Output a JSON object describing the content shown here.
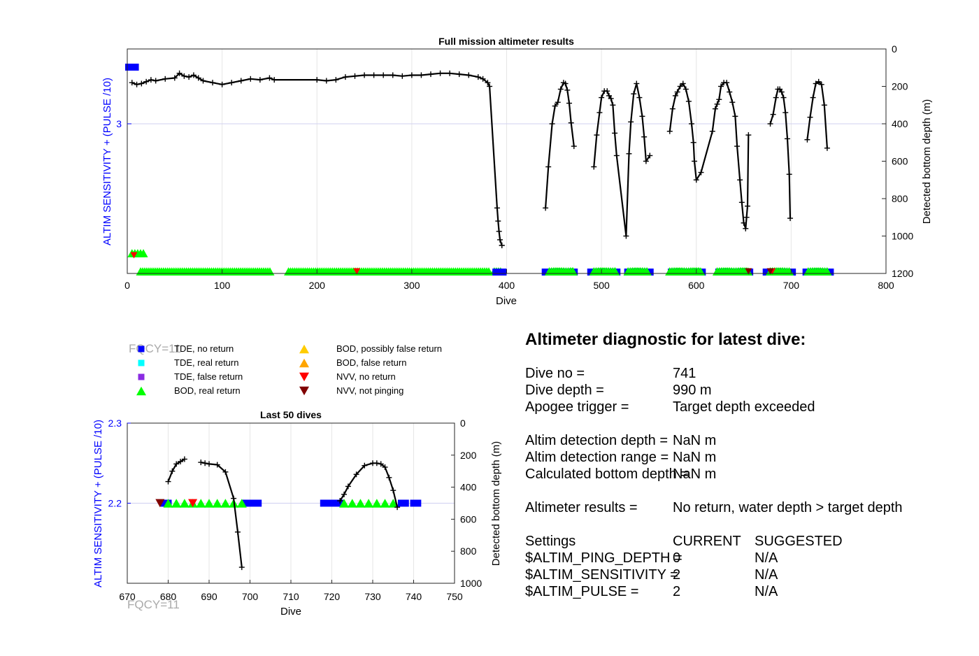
{
  "chart_data": [
    {
      "type": "line",
      "title": "Full mission altimeter results",
      "xlabel": "Dive",
      "ylabel_left": "ALTIM SENSITIVITY + (PULSE /10)",
      "ylabel_right": "Detected bottom depth (m)",
      "xlim": [
        0,
        800
      ],
      "xticks": [
        0,
        100,
        200,
        300,
        400,
        500,
        600,
        700,
        800
      ],
      "ylim_right": [
        0,
        1200
      ],
      "yticks_right": [
        0,
        200,
        400,
        600,
        800,
        1000,
        1200
      ],
      "yticks_left": [
        3
      ],
      "grid": true,
      "series": [
        {
          "name": "Detected bottom depth",
          "x": [
            5,
            10,
            15,
            20,
            25,
            30,
            40,
            50,
            55,
            60,
            65,
            70,
            75,
            80,
            90,
            100,
            110,
            120,
            130,
            140,
            150,
            155,
            200,
            210,
            220,
            230,
            240,
            250,
            260,
            270,
            280,
            290,
            300,
            310,
            320,
            330,
            340,
            350,
            360,
            370,
            375,
            380,
            382,
            390,
            391,
            392,
            393,
            395,
            395,
            441,
            444,
            448,
            451,
            454,
            457,
            460,
            462,
            464,
            466,
            468,
            471,
            492,
            495,
            498,
            500,
            503,
            506,
            508,
            510,
            512,
            514,
            516,
            526,
            529,
            531,
            534,
            537,
            540,
            543,
            545,
            547,
            551,
            572,
            575,
            578,
            580,
            583,
            586,
            589,
            592,
            595,
            597,
            598,
            600,
            605,
            617,
            620,
            622,
            624,
            626,
            629,
            632,
            635,
            638,
            641,
            643,
            646,
            648,
            650,
            652,
            653,
            654,
            655,
            678,
            681,
            684,
            686,
            688,
            690,
            692,
            694,
            696,
            698,
            699,
            717,
            720,
            723,
            726,
            729,
            732,
            735,
            738
          ],
          "y": [
            180,
            190,
            185,
            175,
            165,
            170,
            160,
            155,
            130,
            145,
            150,
            140,
            155,
            170,
            180,
            190,
            180,
            170,
            160,
            165,
            155,
            165,
            165,
            170,
            165,
            150,
            145,
            140,
            140,
            140,
            140,
            145,
            140,
            140,
            135,
            130,
            130,
            135,
            140,
            150,
            160,
            180,
            200,
            850,
            920,
            975,
            1020,
            1050,
            1050,
            850,
            630,
            400,
            305,
            285,
            215,
            180,
            185,
            220,
            290,
            395,
            520,
            630,
            460,
            340,
            260,
            225,
            225,
            250,
            265,
            300,
            450,
            570,
            1000,
            560,
            390,
            240,
            185,
            260,
            360,
            470,
            600,
            570,
            440,
            320,
            250,
            230,
            200,
            185,
            215,
            280,
            400,
            500,
            600,
            700,
            660,
            440,
            320,
            295,
            270,
            200,
            180,
            180,
            230,
            285,
            360,
            520,
            700,
            820,
            930,
            960,
            900,
            840,
            460,
            400,
            350,
            260,
            215,
            215,
            230,
            260,
            340,
            480,
            670,
            905,
            485,
            365,
            260,
            185,
            175,
            190,
            300,
            530
          ],
          "marker": "+",
          "color": "#000000"
        },
        {
          "name": "BOD, real return",
          "x_ranges": [
            [
              5,
              18
            ],
            [
              14,
              152
            ],
            [
              170,
              383
            ],
            [
              387,
              395
            ],
            [
              445,
              470
            ],
            [
              492,
              515
            ],
            [
              528,
              550
            ],
            [
              572,
              605
            ],
            [
              622,
              655
            ],
            [
              678,
              700
            ],
            [
              718,
              740
            ]
          ],
          "color": "#00ff00",
          "marker": "triangle-up"
        },
        {
          "name": "TDE, no return",
          "x_ranges": [
            [
              0,
              10
            ],
            [
              385,
              400
            ],
            [
              437,
              475
            ],
            [
              485,
              520
            ],
            [
              524,
              555
            ],
            [
              570,
              610
            ],
            [
              620,
              660
            ],
            [
              670,
              705
            ],
            [
              712,
              745
            ]
          ],
          "color": "#0000ff",
          "marker": "square"
        },
        {
          "name": "NVV, no return",
          "x": [
            7,
            242,
            680
          ],
          "color": "#ff0000",
          "marker": "triangle-down"
        },
        {
          "name": "NVV, not pinging",
          "x": [
            655,
            678
          ],
          "color": "#800000",
          "marker": "triangle-down"
        }
      ]
    },
    {
      "type": "line",
      "title": "Last 50 dives",
      "xlabel": "Dive",
      "ylabel_left": "ALTIM SENSITIVITY + (PULSE /10)",
      "ylabel_right": "Detected bottom depth (m)",
      "xlim": [
        670,
        750
      ],
      "xticks": [
        670,
        680,
        690,
        700,
        710,
        720,
        730,
        740,
        750
      ],
      "ylim_left": [
        2.1,
        2.3
      ],
      "yticks_left": [
        2.2,
        2.3
      ],
      "ylim_right": [
        0,
        1000
      ],
      "yticks_right": [
        0,
        200,
        400,
        600,
        800,
        1000
      ],
      "grid": true,
      "series": [
        {
          "name": "Detected bottom depth",
          "x": [
            680,
            681,
            682,
            683,
            684,
            688,
            689,
            690,
            692,
            694,
            696,
            697,
            698
          ],
          "y": [
            365,
            300,
            255,
            240,
            225,
            245,
            250,
            255,
            260,
            305,
            470,
            680,
            900
          ],
          "x2": [
            722,
            723,
            724,
            726,
            728,
            730,
            731,
            732,
            733,
            734,
            735,
            736
          ],
          "y2": [
            485,
            445,
            395,
            320,
            265,
            250,
            250,
            255,
            275,
            340,
            420,
            525
          ],
          "marker": "+",
          "color": "#000000"
        },
        {
          "name": "TDE, no return",
          "x": [
            679,
            680,
            699,
            700,
            701,
            702,
            718,
            719,
            720,
            721,
            722,
            737,
            738,
            740,
            741
          ],
          "value": 2.2,
          "color": "#0000ff",
          "marker": "square"
        },
        {
          "name": "BOD, real return",
          "x": [
            680,
            682,
            684,
            686,
            688,
            690,
            692,
            694,
            696,
            698,
            723,
            725,
            727,
            729,
            731,
            733,
            735
          ],
          "value": 2.2,
          "color": "#00ff00",
          "marker": "triangle-up"
        },
        {
          "name": "NVV, no return",
          "x": [
            686
          ],
          "value": 2.2,
          "color": "#ff0000",
          "marker": "triangle-down"
        },
        {
          "name": "NVV, not pinging",
          "x": [
            678
          ],
          "value": 2.2,
          "color": "#800000",
          "marker": "triangle-down"
        }
      ]
    }
  ],
  "legend": {
    "items": [
      {
        "label": "TDE, no return",
        "color": "#0000ff",
        "marker": "square"
      },
      {
        "label": "TDE, real return",
        "color": "#00ffff",
        "marker": "square"
      },
      {
        "label": "TDE, false return",
        "color": "#8a2be2",
        "marker": "square"
      },
      {
        "label": "BOD, real return",
        "color": "#00ff00",
        "marker": "triangle-up"
      },
      {
        "label": "BOD, possibly false return",
        "color": "#ffcc00",
        "marker": "triangle-up"
      },
      {
        "label": "BOD, false return",
        "color": "#ffa500",
        "marker": "triangle-up"
      },
      {
        "label": "NVV, no return",
        "color": "#ff0000",
        "marker": "triangle-down"
      },
      {
        "label": "NVV, not pinging",
        "color": "#800000",
        "marker": "triangle-down"
      }
    ]
  },
  "fqcy_label": "FQCY=11",
  "diagnostic": {
    "title": "Altimeter diagnostic for latest dive:",
    "rows": [
      {
        "label": "Dive no =",
        "value": "741"
      },
      {
        "label": "Dive depth =",
        "value": "990 m"
      },
      {
        "label": "Apogee trigger =",
        "value": "Target depth exceeded"
      },
      {
        "label": "Altim detection depth =",
        "value": "NaN m"
      },
      {
        "label": "Altim detection range =",
        "value": "NaN m"
      },
      {
        "label": "Calculated bottom depth =",
        "value": "NaN m"
      },
      {
        "label": "Altimeter results =",
        "value": "No return, water depth > target depth"
      }
    ],
    "settings_header": {
      "label": "Settings",
      "current": "CURRENT",
      "suggested": "SUGGESTED"
    },
    "settings": [
      {
        "label": "$ALTIM_PING_DEPTH =",
        "current": "0",
        "suggested": "N/A"
      },
      {
        "label": "$ALTIM_SENSITIVITY =",
        "current": "2",
        "suggested": "N/A"
      },
      {
        "label": "$ALTIM_PULSE =",
        "current": "2",
        "suggested": "N/A"
      }
    ]
  }
}
